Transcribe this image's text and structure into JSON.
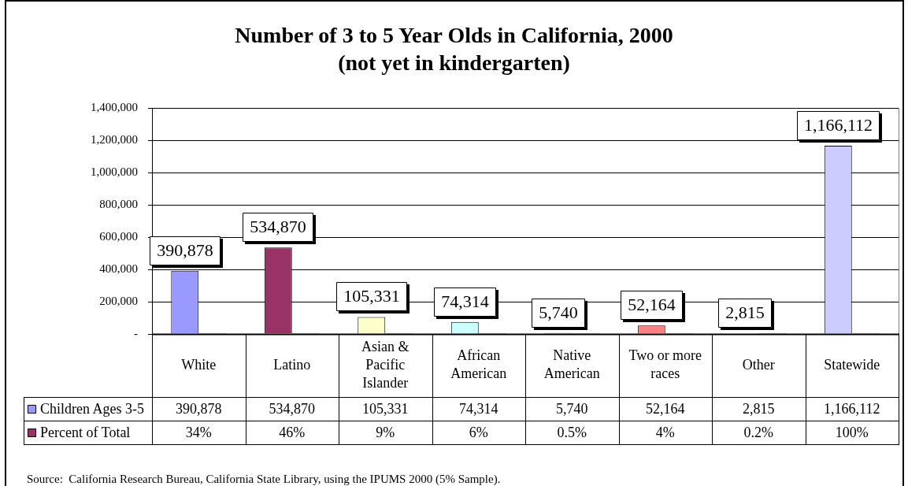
{
  "chart_data": {
    "type": "bar",
    "title": "Number of 3 to 5 Year Olds in California, 2000",
    "subtitle": "(not yet in kindergarten)",
    "categories": [
      "White",
      "Latino",
      "Asian & Pacific Islander",
      "African American",
      "Native American",
      "Two or more races",
      "Other",
      "Statewide"
    ],
    "series": [
      {
        "name": "Children Ages 3-5",
        "color": "#9999ff",
        "colors": [
          "#9999ff",
          "#993366",
          "#ffffcc",
          "#ccffff",
          "#660066",
          "#ff8080",
          "#0066cc",
          "#ccccff"
        ],
        "values": [
          390878,
          534870,
          105331,
          74314,
          5740,
          52164,
          2815,
          1166112
        ],
        "value_labels": [
          "390,878",
          "534,870",
          "105,331",
          "74,314",
          "5,740",
          "52,164",
          "2,815",
          "1,166,112"
        ],
        "data_labels": true
      },
      {
        "name": "Percent of Total",
        "color": "#993366",
        "values": [
          34,
          46,
          9,
          6,
          0.5,
          4,
          0.2,
          100
        ],
        "value_labels": [
          "34%",
          "46%",
          "9%",
          "6%",
          "0.5%",
          "4%",
          "0.2%",
          "100%"
        ]
      }
    ],
    "ylim": [
      0,
      1400000
    ],
    "yticks": [
      {
        "value": 0,
        "label": "-"
      },
      {
        "value": 200000,
        "label": "200,000"
      },
      {
        "value": 400000,
        "label": "400,000"
      },
      {
        "value": 600000,
        "label": "600,000"
      },
      {
        "value": 800000,
        "label": "800,000"
      },
      {
        "value": 1000000,
        "label": "1,000,000"
      },
      {
        "value": 1200000,
        "label": "1,200,000"
      },
      {
        "value": 1400000,
        "label": "1,400,000"
      }
    ],
    "grid": "y",
    "legend": "bottom",
    "annotations": [
      "Source:  California Research Bureau, California State Library, using the IPUMS 2000 (5% Sample)."
    ]
  }
}
